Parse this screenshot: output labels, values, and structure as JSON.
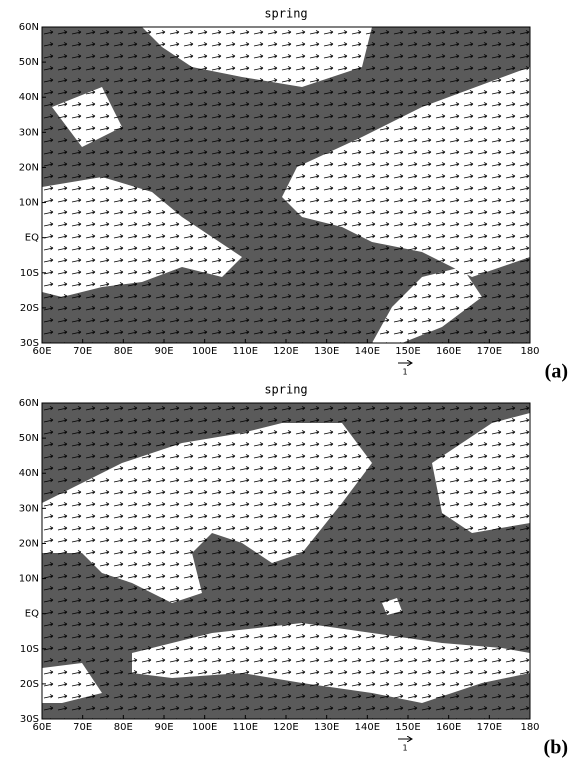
{
  "panels": [
    {
      "title": "spring",
      "xticks": [
        "60E",
        "70E",
        "80E",
        "90E",
        "100E",
        "110E",
        "120E",
        "130E",
        "140E",
        "150E",
        "160E",
        "170E",
        "180"
      ],
      "yticks": [
        "60N",
        "50N",
        "40N",
        "30N",
        "20N",
        "10N",
        "EQ",
        "10S",
        "20S",
        "30S"
      ],
      "scale_label": "1",
      "panel_label": "(a)"
    },
    {
      "title": "spring",
      "xticks": [
        "60E",
        "70E",
        "80E",
        "90E",
        "100E",
        "110E",
        "120E",
        "130E",
        "140E",
        "150E",
        "160E",
        "170E",
        "180"
      ],
      "yticks": [
        "60N",
        "50N",
        "40N",
        "30N",
        "20N",
        "10N",
        "EQ",
        "10S",
        "20S",
        "30S"
      ],
      "scale_label": "1",
      "panel_label": "(b)"
    }
  ]
}
